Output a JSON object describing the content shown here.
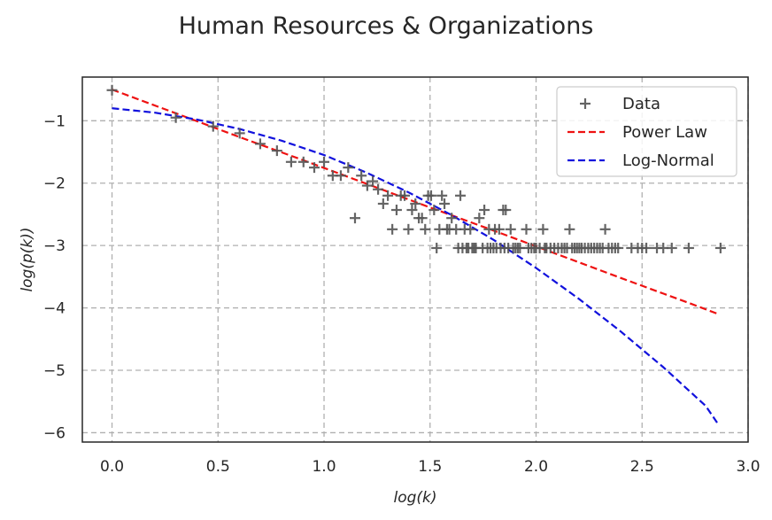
{
  "chart_data": {
    "type": "scatter",
    "title": "Human Resources & Organizations",
    "xlabel": "log(k)",
    "ylabel": "log(p(k))",
    "xlim": [
      -0.14,
      3.0
    ],
    "ylim": [
      -6.15,
      -0.3
    ],
    "xticks": [
      0.0,
      0.5,
      1.0,
      1.5,
      2.0,
      2.5,
      3.0
    ],
    "xtick_labels": [
      "0.0",
      "0.5",
      "1.0",
      "1.5",
      "2.0",
      "2.5",
      "3.0"
    ],
    "yticks": [
      -1,
      -2,
      -3,
      -4,
      -5,
      -6
    ],
    "ytick_labels": [
      "−1",
      "−2",
      "−3",
      "−4",
      "−5",
      "−6"
    ],
    "grid": true,
    "legend_position": "top-right",
    "series": [
      {
        "name": "Data",
        "kind": "scatter",
        "marker": "plus",
        "color": "#555555",
        "points": [
          [
            0.0,
            -0.51
          ],
          [
            0.301,
            -0.95
          ],
          [
            0.477,
            -1.09
          ],
          [
            0.602,
            -1.2
          ],
          [
            0.699,
            -1.37
          ],
          [
            0.778,
            -1.48
          ],
          [
            0.845,
            -1.66
          ],
          [
            0.903,
            -1.66
          ],
          [
            0.954,
            -1.75
          ],
          [
            1.0,
            -1.66
          ],
          [
            1.041,
            -1.88
          ],
          [
            1.079,
            -1.88
          ],
          [
            1.114,
            -1.75
          ],
          [
            1.146,
            -2.56
          ],
          [
            1.176,
            -1.88
          ],
          [
            1.204,
            -2.04
          ],
          [
            1.23,
            -1.97
          ],
          [
            1.255,
            -2.1
          ],
          [
            1.279,
            -2.33
          ],
          [
            1.301,
            -2.2
          ],
          [
            1.322,
            -2.74
          ],
          [
            1.342,
            -2.43
          ],
          [
            1.362,
            -2.2
          ],
          [
            1.38,
            -2.2
          ],
          [
            1.398,
            -2.74
          ],
          [
            1.415,
            -2.43
          ],
          [
            1.431,
            -2.33
          ],
          [
            1.447,
            -2.56
          ],
          [
            1.462,
            -2.56
          ],
          [
            1.477,
            -2.74
          ],
          [
            1.491,
            -2.2
          ],
          [
            1.505,
            -2.2
          ],
          [
            1.519,
            -2.43
          ],
          [
            1.531,
            -3.04
          ],
          [
            1.544,
            -2.74
          ],
          [
            1.556,
            -2.2
          ],
          [
            1.568,
            -2.33
          ],
          [
            1.58,
            -2.74
          ],
          [
            1.591,
            -2.74
          ],
          [
            1.602,
            -2.56
          ],
          [
            1.623,
            -2.74
          ],
          [
            1.633,
            -3.04
          ],
          [
            1.643,
            -2.2
          ],
          [
            1.653,
            -3.04
          ],
          [
            1.663,
            -2.74
          ],
          [
            1.672,
            -3.04
          ],
          [
            1.681,
            -3.04
          ],
          [
            1.69,
            -2.74
          ],
          [
            1.699,
            -3.04
          ],
          [
            1.708,
            -3.04
          ],
          [
            1.716,
            -3.04
          ],
          [
            1.732,
            -2.56
          ],
          [
            1.748,
            -3.04
          ],
          [
            1.756,
            -2.43
          ],
          [
            1.771,
            -3.04
          ],
          [
            1.778,
            -2.74
          ],
          [
            1.785,
            -3.04
          ],
          [
            1.799,
            -3.04
          ],
          [
            1.806,
            -2.74
          ],
          [
            1.813,
            -3.04
          ],
          [
            1.826,
            -2.74
          ],
          [
            1.833,
            -3.04
          ],
          [
            1.845,
            -2.43
          ],
          [
            1.851,
            -3.04
          ],
          [
            1.857,
            -2.43
          ],
          [
            1.869,
            -3.04
          ],
          [
            1.88,
            -2.74
          ],
          [
            1.892,
            -3.04
          ],
          [
            1.903,
            -3.04
          ],
          [
            1.914,
            -3.04
          ],
          [
            1.924,
            -3.04
          ],
          [
            1.954,
            -2.74
          ],
          [
            1.964,
            -3.04
          ],
          [
            1.978,
            -3.04
          ],
          [
            1.991,
            -3.04
          ],
          [
            2.0,
            -3.04
          ],
          [
            2.017,
            -3.04
          ],
          [
            2.033,
            -2.74
          ],
          [
            2.041,
            -3.04
          ],
          [
            2.049,
            -3.04
          ],
          [
            2.068,
            -3.04
          ],
          [
            2.086,
            -3.04
          ],
          [
            2.104,
            -3.04
          ],
          [
            2.121,
            -3.04
          ],
          [
            2.134,
            -3.04
          ],
          [
            2.146,
            -3.04
          ],
          [
            2.158,
            -2.74
          ],
          [
            2.17,
            -3.04
          ],
          [
            2.182,
            -3.04
          ],
          [
            2.193,
            -3.04
          ],
          [
            2.204,
            -3.04
          ],
          [
            2.215,
            -3.04
          ],
          [
            2.23,
            -3.04
          ],
          [
            2.246,
            -3.04
          ],
          [
            2.26,
            -3.04
          ],
          [
            2.274,
            -3.04
          ],
          [
            2.288,
            -3.04
          ],
          [
            2.301,
            -3.04
          ],
          [
            2.314,
            -3.04
          ],
          [
            2.326,
            -2.74
          ],
          [
            2.342,
            -3.04
          ],
          [
            2.358,
            -3.04
          ],
          [
            2.373,
            -3.04
          ],
          [
            2.387,
            -3.04
          ],
          [
            2.45,
            -3.04
          ],
          [
            2.48,
            -3.04
          ],
          [
            2.5,
            -3.04
          ],
          [
            2.52,
            -3.04
          ],
          [
            2.57,
            -3.04
          ],
          [
            2.6,
            -3.04
          ],
          [
            2.64,
            -3.04
          ],
          [
            2.72,
            -3.04
          ],
          [
            2.87,
            -3.04
          ]
        ]
      },
      {
        "name": "Power Law",
        "kind": "line",
        "dash": "dashed",
        "color": "#ee1111",
        "x": [
          0.0,
          0.3,
          0.6,
          0.9,
          1.2,
          1.5,
          1.8,
          2.1,
          2.4,
          2.6,
          2.72,
          2.86
        ],
        "y": [
          -0.5,
          -0.88,
          -1.26,
          -1.63,
          -2.01,
          -2.39,
          -2.76,
          -3.14,
          -3.52,
          -3.77,
          -3.92,
          -4.1
        ]
      },
      {
        "name": "Log-Normal",
        "kind": "line",
        "dash": "dashed",
        "color": "#1111dd",
        "x": [
          0.0,
          0.2,
          0.4,
          0.6,
          0.8,
          1.0,
          1.2,
          1.4,
          1.6,
          1.8,
          2.0,
          2.2,
          2.4,
          2.6,
          2.8,
          2.86
        ],
        "y": [
          -0.8,
          -0.87,
          -0.98,
          -1.13,
          -1.32,
          -1.55,
          -1.83,
          -2.15,
          -2.51,
          -2.91,
          -3.36,
          -3.85,
          -4.38,
          -4.95,
          -5.57,
          -5.87
        ]
      }
    ]
  }
}
